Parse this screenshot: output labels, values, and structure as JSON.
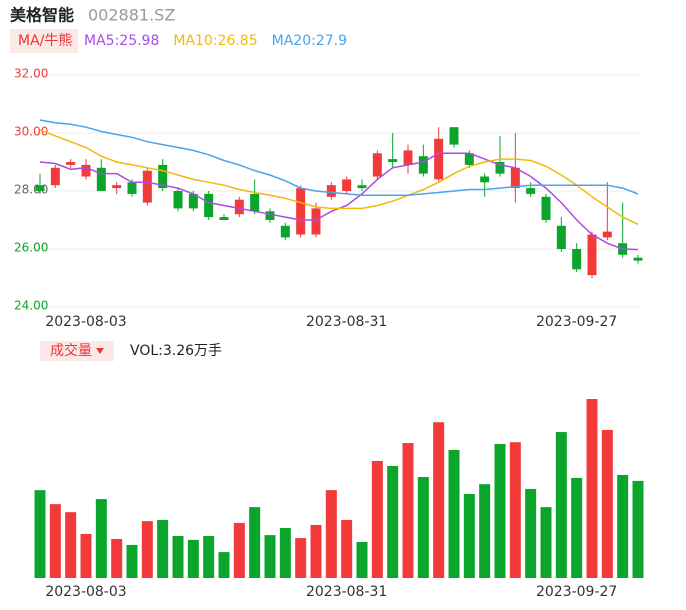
{
  "chart_data": [
    {
      "type": "candlestick",
      "title": "美格智能",
      "subtitle": "002881.SZ",
      "indicator": "MA/牛熊",
      "up_color": "#f23a3a",
      "down_color": "#0aa52a",
      "categories": [
        null,
        null,
        null,
        "2023-08-03",
        null,
        null,
        null,
        null,
        null,
        null,
        null,
        null,
        null,
        null,
        null,
        null,
        null,
        null,
        null,
        null,
        "2023-08-31",
        null,
        null,
        null,
        null,
        null,
        null,
        null,
        null,
        null,
        null,
        null,
        null,
        null,
        null,
        "2023-09-27",
        null,
        null,
        null,
        null
      ],
      "open": [
        28.2,
        28.2,
        28.9,
        28.5,
        28.8,
        28.1,
        28.3,
        27.6,
        28.9,
        28.0,
        27.9,
        27.9,
        27.1,
        27.2,
        27.9,
        27.3,
        26.8,
        26.5,
        26.5,
        27.8,
        28.0,
        28.2,
        28.5,
        29.1,
        28.9,
        29.2,
        28.4,
        30.2,
        29.3,
        28.5,
        29.0,
        28.1,
        28.1,
        27.8,
        26.8,
        26.0,
        25.1,
        26.4,
        26.2,
        25.7
      ],
      "high": [
        28.6,
        28.9,
        29.1,
        29.1,
        29.1,
        28.3,
        28.4,
        28.8,
        29.1,
        28.1,
        28.0,
        28.0,
        27.2,
        27.8,
        28.4,
        27.4,
        26.9,
        28.2,
        27.6,
        28.3,
        28.5,
        28.4,
        29.4,
        30.0,
        29.6,
        29.6,
        30.2,
        30.2,
        29.4,
        28.6,
        29.9,
        30.0,
        28.3,
        27.9,
        27.1,
        26.2,
        26.6,
        28.3,
        27.6,
        25.8
      ],
      "low": [
        27.9,
        28.1,
        28.8,
        28.4,
        28.0,
        27.9,
        27.8,
        27.5,
        28.0,
        27.3,
        27.3,
        27.0,
        27.0,
        27.1,
        27.2,
        26.9,
        26.3,
        26.4,
        26.4,
        27.7,
        27.9,
        28.0,
        28.4,
        28.8,
        28.6,
        28.5,
        28.3,
        29.5,
        28.8,
        27.8,
        28.5,
        27.6,
        27.8,
        26.9,
        25.9,
        25.2,
        25.0,
        26.3,
        25.7,
        25.5
      ],
      "close": [
        28.0,
        28.8,
        29.0,
        28.9,
        28.0,
        28.2,
        27.9,
        28.7,
        28.1,
        27.4,
        27.4,
        27.1,
        27.0,
        27.7,
        27.3,
        27.0,
        26.4,
        28.1,
        27.4,
        28.2,
        28.4,
        28.1,
        29.3,
        29.0,
        29.4,
        28.6,
        29.8,
        29.6,
        28.9,
        28.3,
        28.6,
        28.8,
        27.9,
        27.0,
        26.0,
        25.3,
        26.5,
        26.6,
        25.8,
        25.6
      ],
      "series": [
        {
          "name": "MA5:25.98",
          "color": "#a94be8",
          "values": [
            29.0,
            28.95,
            28.75,
            28.8,
            28.6,
            28.6,
            28.3,
            28.3,
            28.2,
            28.1,
            27.9,
            27.6,
            27.5,
            27.4,
            27.3,
            27.2,
            27.1,
            27.0,
            27.0,
            27.3,
            27.5,
            27.9,
            28.4,
            28.8,
            28.9,
            29.0,
            29.3,
            29.3,
            29.3,
            29.1,
            28.9,
            28.8,
            28.5,
            28.1,
            27.6,
            27.0,
            26.5,
            26.2,
            26.0,
            25.98
          ]
        },
        {
          "name": "MA10:26.85",
          "color": "#f2b90c",
          "values": [
            30.1,
            29.9,
            29.7,
            29.5,
            29.2,
            29.0,
            28.9,
            28.8,
            28.7,
            28.55,
            28.4,
            28.3,
            28.2,
            28.05,
            27.95,
            27.85,
            27.75,
            27.6,
            27.45,
            27.4,
            27.4,
            27.4,
            27.5,
            27.65,
            27.85,
            28.05,
            28.3,
            28.6,
            28.85,
            29.0,
            29.1,
            29.1,
            29.05,
            28.85,
            28.55,
            28.2,
            27.8,
            27.45,
            27.1,
            26.85
          ]
        },
        {
          "name": "MA20:27.9",
          "color": "#4aa3ec",
          "values": [
            30.45,
            30.35,
            30.3,
            30.2,
            30.05,
            29.95,
            29.85,
            29.7,
            29.6,
            29.5,
            29.4,
            29.25,
            29.05,
            28.9,
            28.7,
            28.55,
            28.35,
            28.1,
            28.0,
            27.95,
            27.9,
            27.85,
            27.85,
            27.85,
            27.85,
            27.9,
            27.95,
            28.0,
            28.05,
            28.05,
            28.1,
            28.15,
            28.2,
            28.2,
            28.2,
            28.2,
            28.2,
            28.2,
            28.1,
            27.9
          ]
        }
      ],
      "ylim": [
        24,
        32
      ],
      "yticks": [
        {
          "value": 32,
          "label": "32.00"
        },
        {
          "value": 30,
          "label": "30.00"
        },
        {
          "value": 28,
          "label": "28.00"
        },
        {
          "value": 26,
          "label": "26.00"
        },
        {
          "value": 24,
          "label": "24.00"
        }
      ],
      "grid": true
    },
    {
      "type": "bar",
      "title": "成交量",
      "legend": "VOL:3.26万手",
      "categories": [
        null,
        null,
        null,
        "2023-08-03",
        null,
        null,
        null,
        null,
        null,
        null,
        null,
        null,
        null,
        null,
        null,
        null,
        null,
        null,
        null,
        null,
        "2023-08-31",
        null,
        null,
        null,
        null,
        null,
        null,
        null,
        null,
        null,
        null,
        null,
        null,
        null,
        null,
        "2023-09-27",
        null,
        null,
        null,
        null
      ],
      "values": [
        2.95,
        2.48,
        2.21,
        1.48,
        2.65,
        1.31,
        1.11,
        1.91,
        1.95,
        1.41,
        1.28,
        1.41,
        0.87,
        1.85,
        2.38,
        1.44,
        1.68,
        1.34,
        1.78,
        2.95,
        1.95,
        1.21,
        3.93,
        3.76,
        4.53,
        3.39,
        5.23,
        4.3,
        2.82,
        3.15,
        4.5,
        4.56,
        2.99,
        2.38,
        4.9,
        3.36,
        6.01,
        4.97,
        3.46,
        3.26
      ]
    }
  ]
}
